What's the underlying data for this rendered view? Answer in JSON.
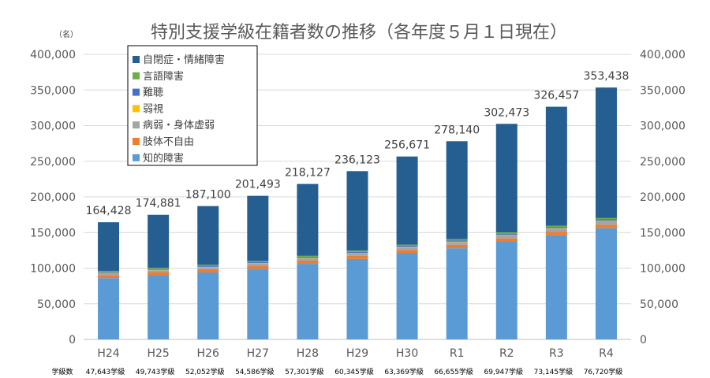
{
  "chart_data": {
    "type": "bar",
    "stacked": true,
    "title": "特別支援学級在籍者数の推移（各年度５月１日現在）",
    "unit_label": "（名）",
    "categories": [
      "H24",
      "H25",
      "H26",
      "H27",
      "H28",
      "H29",
      "H30",
      "R1",
      "R2",
      "R3",
      "R4"
    ],
    "totals_labels": [
      "164,428",
      "174,881",
      "187,100",
      "201,493",
      "218,127",
      "236,123",
      "256,671",
      "278,140",
      "302,473",
      "326,457",
      "353,438"
    ],
    "totals": [
      164428,
      174881,
      187100,
      201493,
      218127,
      236123,
      256671,
      278140,
      302473,
      326457,
      353438
    ],
    "ylim": [
      0,
      400000
    ],
    "yticks": [
      "0",
      "50,000",
      "100,000",
      "150,000",
      "200,000",
      "250,000",
      "300,000",
      "350,000",
      "400,000"
    ],
    "series": [
      {
        "name": "知的障害",
        "color": "#5B9BD5",
        "values": [
          86000,
          90000,
          94000,
          99000,
          106000,
          113000,
          121000,
          128000,
          137000,
          146000,
          156000
        ]
      },
      {
        "name": "肢体不自由",
        "color": "#ED7D31",
        "values": [
          4300,
          4400,
          4500,
          4500,
          4500,
          4500,
          4600,
          4700,
          4800,
          4800,
          4900
        ]
      },
      {
        "name": "病弱・身体虚弱",
        "color": "#A5A5A5",
        "values": [
          2600,
          2700,
          2800,
          2900,
          3000,
          3100,
          3400,
          3900,
          4200,
          4600,
          5000
        ]
      },
      {
        "name": "弱視",
        "color": "#FFC000",
        "values": [
          500,
          500,
          500,
          500,
          500,
          600,
          600,
          600,
          600,
          600,
          600
        ]
      },
      {
        "name": "難聴",
        "color": "#4472C4",
        "values": [
          1300,
          1400,
          1500,
          1600,
          1600,
          1700,
          1800,
          1800,
          1900,
          1900,
          2000
        ]
      },
      {
        "name": "言語障害",
        "color": "#70AD47",
        "values": [
          1500,
          1600,
          1600,
          1600,
          1700,
          1700,
          1700,
          1800,
          1800,
          1700,
          1800
        ]
      },
      {
        "name": "自閉症・情緒障害",
        "color": "#255E91",
        "values": [
          68228,
          74281,
          82200,
          91393,
          100827,
          111523,
          123571,
          137340,
          152173,
          166857,
          183138
        ]
      }
    ],
    "class_row_label": "学級数",
    "class_counts": [
      "47,643学級",
      "49,743学級",
      "52,052学級",
      "54,586学級",
      "57,301学級",
      "60,345学級",
      "63,369学級",
      "66,655学級",
      "69,947学級",
      "73,145学級",
      "76,720学級"
    ],
    "legend_order": [
      "自閉症・情緒障害",
      "言語障害",
      "難聴",
      "弱視",
      "病弱・身体虚弱",
      "肢体不自由",
      "知的障害"
    ]
  }
}
